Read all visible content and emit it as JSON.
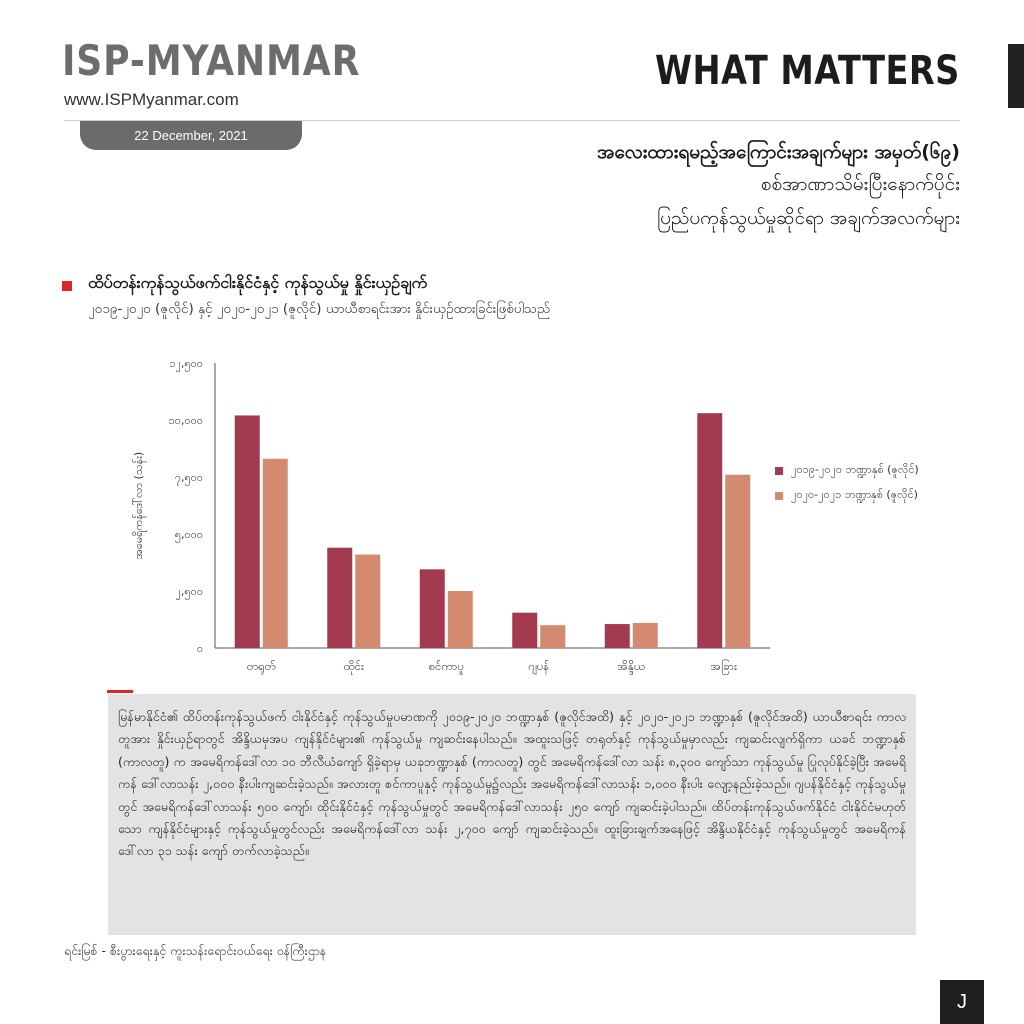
{
  "header": {
    "brand": "ISP-MYANMAR",
    "url": "www.ISPMyanmar.com",
    "section_label": "WHAT MATTERS",
    "date": "22 December, 2021",
    "title": "အလေးထားရမည့်အကြောင်းအချက်များ အမှတ်(၆၉)",
    "subtitle_1": "စစ်အာဏာသိမ်းပြီးနောက်ပိုင်း",
    "subtitle_2": "ပြည်ပကုန်သွယ်မှုဆိုင်ရာ အချက်အလက်များ"
  },
  "section": {
    "title": "ထိပ်တန်းကုန်သွယ်ဖက်ငါးနိုင်ငံနှင့် ကုန်သွယ်မှု နှိုင်းယှဉ်ချက်",
    "subtitle": "၂၀၁၉-၂၀၂၀ (ဇူလိုင်) နှင့် ၂၀၂၀-၂၀၂၁ (ဇူလိုင်) ယာယီစာရင်းအား နှိုင်းယှဉ်ထားခြင်းဖြစ်ပါသည်"
  },
  "chart_data": {
    "type": "bar",
    "ylabel": "အမေရိကန်ဒေါ်လာ (သန်း)",
    "ylim": [
      0,
      12500
    ],
    "yticks": [
      0,
      2500,
      5000,
      7500,
      10000,
      12500
    ],
    "ytick_labels": [
      "၀",
      "၂,၅၀၀",
      "၅,၀၀၀",
      "၇,၅၀၀",
      "၁၀,၀၀၀",
      "၁၂,၅၀၀"
    ],
    "categories": [
      "တရုတ်",
      "ထိုင်း",
      "စင်ကာပူ",
      "ဂျပန်",
      "အိန္ဒိယ",
      "အခြား"
    ],
    "series": [
      {
        "name": "၂၀၁၉-၂၀၂၀ ဘဏ္ဍာနှစ် (ဇူလိုင်)",
        "color": "#a33a50",
        "values": [
          10200,
          4400,
          3450,
          1550,
          1050,
          10300
        ]
      },
      {
        "name": "၂၀၂၀-၂၀၂၁ ဘဏ္ဍာနှစ် (ဇူလိုင်)",
        "color": "#d48a6f",
        "values": [
          8300,
          4100,
          2500,
          1000,
          1100,
          7600
        ]
      }
    ],
    "legend_position": "right",
    "grid": false
  },
  "body_text": "မြန်မာနိုင်ငံ၏ ထိပ်တန်းကုန်သွယ်ဖက် ငါးနိုင်ငံနှင့် ကုန်သွယ်မှုပမာဏကို ၂၀၁၉-၂၀၂၀ ဘဏ္ဍာနှစ် (ဇူလိုင်အထိ) နှင့် ၂၀၂၀-၂၀၂၁ ဘဏ္ဍာနှစ် (ဇူလိုင်အထိ) ယာယီစာရင်း ကာလတူအား နှိုင်းယှဉ်ရာတွင် အိန္ဒိယမှအပ ကျန်နိုင်ငံများ၏ ကုန်သွယ်မှု ကျဆင်းနေပါသည်။ အထူးသဖြင့် တရုတ်နှင့် ကုန်သွယ်မှုမှာလည်း ကျဆင်းလျက်ရှိကာ ယခင် ဘဏ္ဍာနှစ် (ကာလတူ) က အမေရိကန်ဒေါ်လာ ၁၀ ဘီလီယံကျော် ရှိခဲ့ရာမှ ယခုဘဏ္ဍာနှစ် (ကာလတူ) တွင် အမေရိကန်ဒေါ်လာ သန်း ၈,၃၀၀ ကျော်သာ ကုန်သွယ်မှု ပြုလုပ်နိုင်ခဲ့ပြီး အမေရိကန် ဒေါ်လာသန်း ၂,၀၀၀ နီးပါးကျဆင်းခဲ့သည်။ အလားတူ စင်ကာပူနှင့် ကုန်သွယ်မှု၌လည်း အမေရိကန်ဒေါ်လာသန်း ၁,၀၀၀ နီးပါး လျော့နည်းခဲ့သည်။ ဂျပန်နိုင်ငံနှင့် ကုန်သွယ်မှုတွင် အမေရိကန်ဒေါ်လာသန်း ၅၀၀ ကျော်၊ ထိုင်းနိုင်ငံနှင့် ကုန်သွယ်မှုတွင် အမေရိကန်ဒေါ်လာသန်း ၂၅၀ ကျော် ကျဆင်းခဲ့ပါသည်။ ထိပ်တန်းကုန်သွယ်ဖက်နိုင်ငံ ငါးနိုင်ငံမဟုတ်သော ကျန်နိုင်ငံများနှင့် ကုန်သွယ်မှုတွင်လည်း အမေရိကန်ဒေါ်လာ သန်း ၂,၇၀၀ ကျော် ကျဆင်းခဲ့သည်။ ထူးခြားချက်အနေဖြင့် အိန္ဒိယနိုင်ငံနှင့် ကုန်သွယ်မှုတွင် အမေရိကန် ဒေါ်လာ ၃၁ သန်း ကျော် တက်လာခဲ့သည်။",
  "source": "ရင်းမြစ် -    စီးပွားရေးနှင့် ကူးသန်းရောင်းဝယ်ရေး ဝန်ကြီးဌာန",
  "page_badge": "J"
}
